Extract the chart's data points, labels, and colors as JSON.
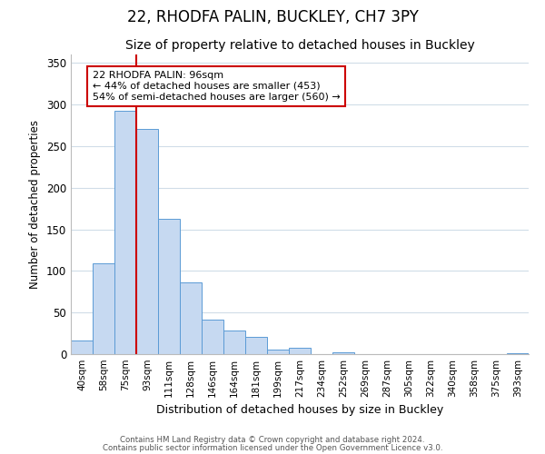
{
  "title": "22, RHODFA PALIN, BUCKLEY, CH7 3PY",
  "subtitle": "Size of property relative to detached houses in Buckley",
  "xlabel": "Distribution of detached houses by size in Buckley",
  "ylabel": "Number of detached properties",
  "bar_labels": [
    "40sqm",
    "58sqm",
    "75sqm",
    "93sqm",
    "111sqm",
    "128sqm",
    "146sqm",
    "164sqm",
    "181sqm",
    "199sqm",
    "217sqm",
    "234sqm",
    "252sqm",
    "269sqm",
    "287sqm",
    "305sqm",
    "322sqm",
    "340sqm",
    "358sqm",
    "375sqm",
    "393sqm"
  ],
  "bar_values": [
    16,
    109,
    292,
    270,
    163,
    86,
    42,
    28,
    21,
    5,
    8,
    0,
    2,
    0,
    0,
    0,
    0,
    0,
    0,
    0,
    1
  ],
  "bar_color": "#c6d9f1",
  "bar_edge_color": "#5b9bd5",
  "vline_x_index": 2,
  "vline_color": "#cc0000",
  "ylim": [
    0,
    360
  ],
  "yticks": [
    0,
    50,
    100,
    150,
    200,
    250,
    300,
    350
  ],
  "annotation_title": "22 RHODFA PALIN: 96sqm",
  "annotation_line1": "← 44% of detached houses are smaller (453)",
  "annotation_line2": "54% of semi-detached houses are larger (560) →",
  "annotation_box_color": "#ffffff",
  "annotation_box_edgecolor": "#cc0000",
  "footnote1": "Contains HM Land Registry data © Crown copyright and database right 2024.",
  "footnote2": "Contains public sector information licensed under the Open Government Licence v3.0.",
  "background_color": "#ffffff",
  "grid_color": "#d0dde8",
  "title_fontsize": 12,
  "subtitle_fontsize": 10
}
